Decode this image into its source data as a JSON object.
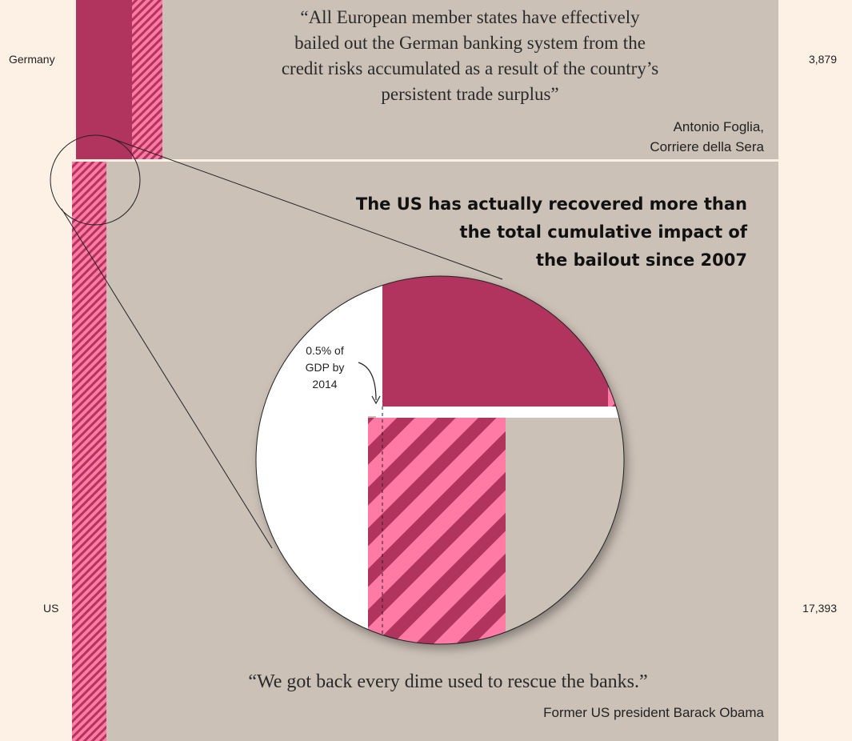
{
  "chart_data": {
    "type": "bar",
    "categories": [
      "Germany",
      "US"
    ],
    "values": [
      3879,
      17393
    ],
    "value_labels": [
      "3,879",
      "17,393"
    ],
    "zoom_annotation": "0.5% of GDP by 2014"
  },
  "quotes": {
    "germany": {
      "lines": [
        "“All European member states have effectively",
        "bailed out the German banking system from the",
        "credit risks accumulated as a result of the country’s",
        "persistent trade surplus”"
      ],
      "attribution_lines": [
        "Antonio Foglia,",
        "Corriere della Sera"
      ]
    },
    "us": {
      "text": "“We got back every dime used to rescue the banks.”",
      "attribution": "Former US president Barack Obama"
    }
  },
  "headline": {
    "lines": [
      "The US has actually recovered more than",
      "the total cumulative impact of",
      "the bailout since 2007"
    ]
  },
  "colors": {
    "page_background": "#fdf1e6",
    "panel": "#ccc1b7",
    "solid_bar": "#b1345e",
    "hatched_light": "#ff7aa5",
    "hatched_dark": "#b1345e",
    "zoom_white": "#ffffff"
  }
}
